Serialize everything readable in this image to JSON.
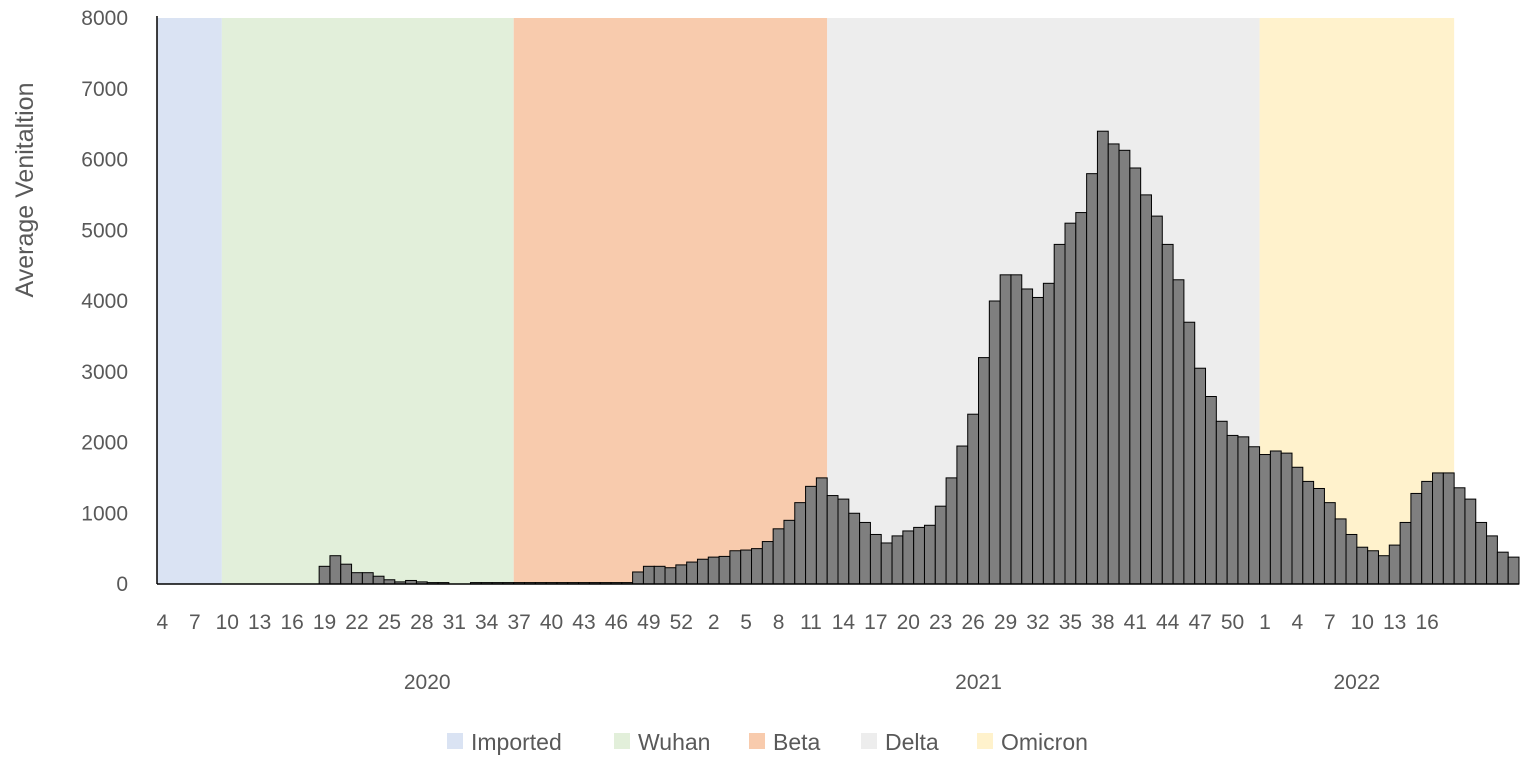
{
  "chart_data": {
    "type": "bar",
    "title": "",
    "xlabel": "",
    "ylabel": "Average Venitaltion",
    "ylim": [
      0,
      8000
    ],
    "yticks": [
      0,
      1000,
      2000,
      3000,
      4000,
      5000,
      6000,
      7000,
      8000
    ],
    "grid": false,
    "legend_position": "bottom",
    "bar_color": "#7f7f7f",
    "years": [
      {
        "label": "2020",
        "first_week": 4,
        "last_week": 53
      },
      {
        "label": "2021",
        "first_week": 1,
        "last_week": 52
      },
      {
        "label": "2022",
        "first_week": 1,
        "last_week": 18
      }
    ],
    "week_tick_labels": [
      "4",
      "7",
      "10",
      "13",
      "16",
      "19",
      "22",
      "25",
      "28",
      "31",
      "34",
      "37",
      "40",
      "43",
      "46",
      "49",
      "52",
      "2",
      "5",
      "8",
      "11",
      "14",
      "17",
      "20",
      "23",
      "26",
      "29",
      "32",
      "35",
      "38",
      "41",
      "44",
      "47",
      "50",
      "1",
      "4",
      "7",
      "10",
      "13",
      "16"
    ],
    "periods": [
      {
        "name": "Imported",
        "color": "#dae3f3",
        "from": "2020-W04",
        "to": "2020-W09"
      },
      {
        "name": "Wuhan",
        "color": "#e2efda",
        "from": "2020-W10",
        "to": "2020-W36"
      },
      {
        "name": "Beta",
        "color": "#f8cbad",
        "from": "2020-W37",
        "to": "2021-W12"
      },
      {
        "name": "Delta",
        "color": "#ededed",
        "from": "2021-W13",
        "to": "2021-W52"
      },
      {
        "name": "Omicron",
        "color": "#fff2cc",
        "from": "2022-W01",
        "to": "2022-W18"
      }
    ],
    "series": [
      {
        "values": [
          0,
          0,
          0,
          0,
          0,
          0,
          0,
          0,
          0,
          0,
          0,
          0,
          0,
          0,
          0,
          250,
          400,
          280,
          160,
          160,
          110,
          60,
          30,
          50,
          30,
          20,
          20,
          0,
          0,
          20,
          20,
          20,
          20,
          20,
          20,
          20,
          20,
          20,
          20,
          20,
          20,
          20,
          20,
          20,
          170,
          250,
          250,
          230,
          270,
          310,
          350,
          380,
          390,
          470,
          480,
          500,
          600,
          780,
          900,
          1150,
          1380,
          1500,
          1250,
          1200,
          1000,
          870,
          700,
          580,
          680,
          750,
          800,
          830,
          1100,
          1500,
          1950,
          2400,
          3200,
          4000,
          4370,
          4370,
          4170,
          4050,
          4250,
          4800,
          5100,
          5250,
          5800,
          6400,
          6220,
          6130,
          5880,
          5500,
          5200,
          4800,
          4300,
          3700,
          3050,
          2650,
          2300,
          2100,
          2080,
          1940,
          1830,
          1880,
          1850,
          1650,
          1450,
          1350,
          1150,
          920,
          700,
          520,
          470,
          400,
          550,
          870,
          1280,
          1450,
          1570,
          1570,
          1360,
          1200,
          870,
          680,
          450,
          380
        ]
      }
    ]
  },
  "legend": [
    {
      "label": "Imported",
      "color": "#dae3f3"
    },
    {
      "label": "Wuhan",
      "color": "#e2efda"
    },
    {
      "label": "Beta",
      "color": "#f8cbad"
    },
    {
      "label": "Delta",
      "color": "#ededed"
    },
    {
      "label": "Omicron",
      "color": "#fff2cc"
    }
  ]
}
